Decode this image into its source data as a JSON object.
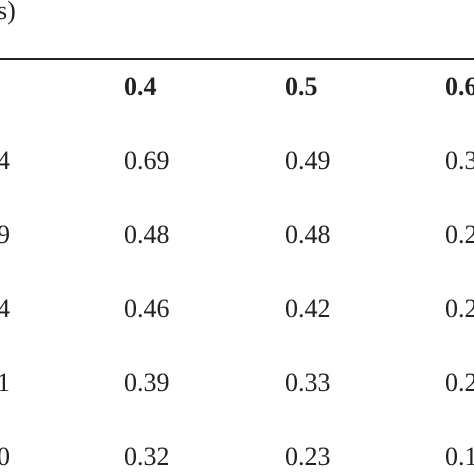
{
  "table": {
    "top_header": "s)",
    "column_headers": [
      "0.4",
      "0.5",
      "0.6"
    ],
    "rows": [
      {
        "row_label": "4",
        "values": [
          "0.69",
          "0.49",
          "0.3"
        ]
      },
      {
        "row_label": "9",
        "values": [
          "0.48",
          "0.48",
          "0.2"
        ]
      },
      {
        "row_label": "4",
        "values": [
          "0.46",
          "0.42",
          "0.2"
        ]
      },
      {
        "row_label": "1",
        "values": [
          "0.39",
          "0.33",
          "0.2"
        ]
      },
      {
        "row_label": "0",
        "values": [
          "0.32",
          "0.23",
          "0.1"
        ]
      }
    ]
  }
}
